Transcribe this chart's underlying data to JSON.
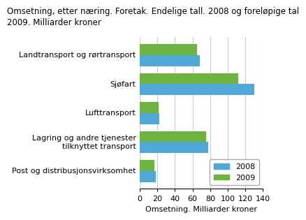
{
  "title_line1": "Omsetning, etter næring. Foretak. Endelige tall. 2008 og foreløpige tal",
  "title_line2": "2009. Milliarder kroner",
  "categories": [
    "Landtransport og rørtransport",
    "Sjøfart",
    "Lufttransport",
    "Lagring og andre tjenester\ntilknyttet transport",
    "Post og distribusjonsvirksomhet"
  ],
  "values_2008": [
    68,
    130,
    22,
    78,
    18
  ],
  "values_2009": [
    65,
    112,
    21,
    75,
    17
  ],
  "color_2008": "#4fa8d5",
  "color_2009": "#6db33f",
  "xlabel": "Omsetning. Milliarder kroner",
  "xlim": [
    0,
    140
  ],
  "xticks": [
    0,
    20,
    40,
    60,
    80,
    100,
    120,
    140
  ],
  "legend_labels": [
    "2008",
    "2009"
  ],
  "bar_height": 0.38,
  "title_fontsize": 8.5,
  "axis_fontsize": 8,
  "tick_fontsize": 8,
  "legend_fontsize": 8,
  "background_color": "#ffffff",
  "grid_color": "#cccccc"
}
